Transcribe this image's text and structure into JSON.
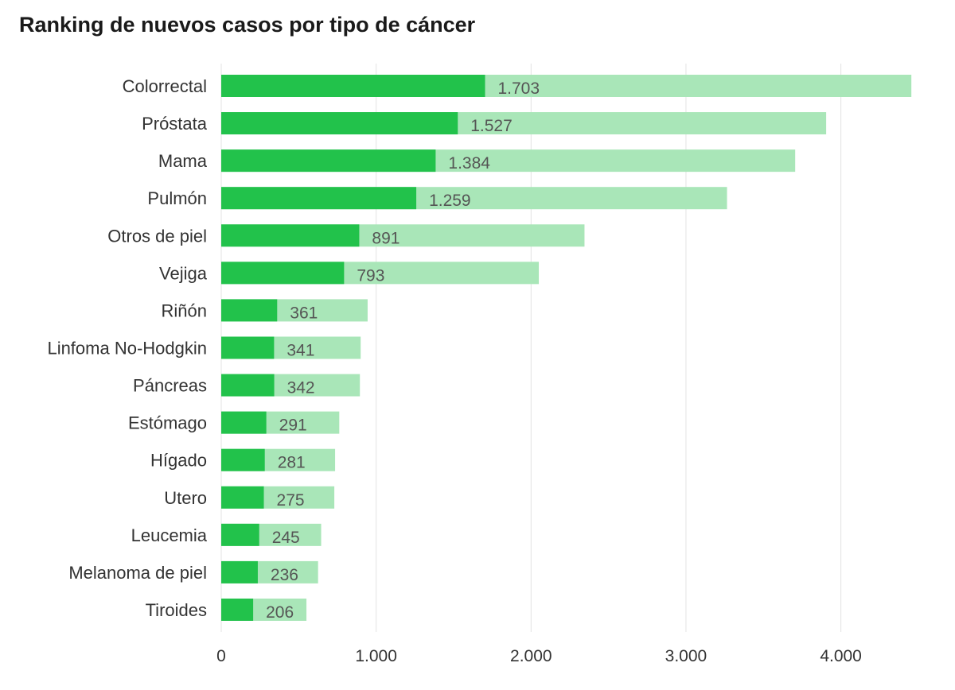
{
  "chart_data": {
    "type": "bar",
    "orientation": "horizontal",
    "title": "Ranking de nuevos casos por tipo de cáncer",
    "xlabel": "",
    "ylabel": "",
    "xlim": [
      0,
      4500
    ],
    "xticks": [
      0,
      1000,
      2000,
      3000,
      4000
    ],
    "xtick_labels": [
      "0",
      "1.000",
      "2.000",
      "3.000",
      "4.000"
    ],
    "grid": true,
    "categories": [
      "Colorrectal",
      "Próstata",
      "Mama",
      "Pulmón",
      "Otros de piel",
      "Vejiga",
      "Riñón",
      "Linfoma No-Hodgkin",
      "Páncreas",
      "Estómago",
      "Hígado",
      "Utero",
      "Leucemia",
      "Melanoma de piel",
      "Tiroides"
    ],
    "series": [
      {
        "color": "#22c24b",
        "values": [
          1703,
          1527,
          1384,
          1259,
          891,
          793,
          361,
          341,
          342,
          291,
          281,
          275,
          245,
          236,
          206
        ],
        "value_labels": [
          "1.703",
          "1.527",
          "1.384",
          "1.259",
          "891",
          "793",
          "361",
          "341",
          "342",
          "291",
          "281",
          "275",
          "245",
          "236",
          "206"
        ]
      },
      {
        "color": "#a9e6b8",
        "values": [
          4455,
          3905,
          3705,
          3265,
          2345,
          2050,
          945,
          900,
          895,
          762,
          735,
          730,
          645,
          625,
          550
        ]
      }
    ]
  }
}
